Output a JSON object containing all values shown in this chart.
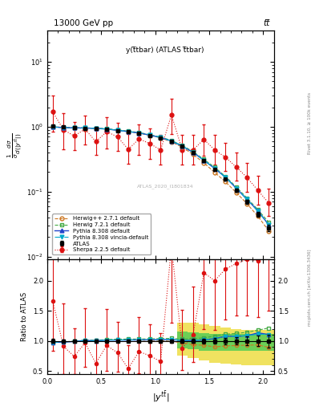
{
  "title_top": "13000 GeV pp",
  "title_right": "tt̅",
  "plot_title": "y(t̅tbar) (ATLAS t̅tbar)",
  "ylabel_main": "1/σ dσ/d(|y^{ttbar}|)",
  "ylabel_ratio": "Ratio to ATLAS",
  "right_label_main": "Rivet 3.1.10, ≥ 100k events",
  "right_label_ratio": "mcplots.cern.ch [arXiv:1306.3436]",
  "watermark": "ATLAS_2020_I1801834",
  "x_centers": [
    0.05,
    0.15,
    0.25,
    0.35,
    0.45,
    0.55,
    0.65,
    0.75,
    0.85,
    0.95,
    1.05,
    1.15,
    1.25,
    1.35,
    1.45,
    1.55,
    1.65,
    1.75,
    1.85,
    1.95,
    2.05
  ],
  "atlas_y": [
    1.02,
    0.99,
    0.97,
    0.95,
    0.94,
    0.91,
    0.87,
    0.83,
    0.79,
    0.73,
    0.67,
    0.59,
    0.5,
    0.4,
    0.3,
    0.22,
    0.155,
    0.105,
    0.07,
    0.045,
    0.028
  ],
  "atlas_yerr": [
    0.03,
    0.025,
    0.022,
    0.022,
    0.02,
    0.02,
    0.018,
    0.018,
    0.018,
    0.018,
    0.018,
    0.016,
    0.015,
    0.014,
    0.012,
    0.01,
    0.008,
    0.006,
    0.005,
    0.004,
    0.003
  ],
  "herwig271_y": [
    1.005,
    0.975,
    0.96,
    0.955,
    0.945,
    0.925,
    0.885,
    0.845,
    0.8,
    0.735,
    0.675,
    0.585,
    0.485,
    0.375,
    0.278,
    0.198,
    0.142,
    0.097,
    0.065,
    0.042,
    0.025
  ],
  "herwig721_y": [
    0.99,
    0.975,
    0.965,
    0.96,
    0.95,
    0.93,
    0.895,
    0.855,
    0.815,
    0.755,
    0.695,
    0.615,
    0.515,
    0.415,
    0.315,
    0.238,
    0.172,
    0.118,
    0.08,
    0.053,
    0.034
  ],
  "pythia8308_y": [
    0.995,
    0.97,
    0.96,
    0.957,
    0.942,
    0.922,
    0.882,
    0.842,
    0.803,
    0.743,
    0.683,
    0.603,
    0.503,
    0.403,
    0.305,
    0.228,
    0.167,
    0.113,
    0.076,
    0.051,
    0.031
  ],
  "pythia8308v_y": [
    0.993,
    0.972,
    0.962,
    0.96,
    0.944,
    0.924,
    0.884,
    0.844,
    0.804,
    0.744,
    0.684,
    0.604,
    0.504,
    0.404,
    0.305,
    0.228,
    0.167,
    0.113,
    0.076,
    0.05,
    0.031
  ],
  "sherpa225_y": [
    1.7,
    0.9,
    0.72,
    0.92,
    0.59,
    0.84,
    0.7,
    0.45,
    0.65,
    0.55,
    0.44,
    1.52,
    0.44,
    0.44,
    0.64,
    0.44,
    0.34,
    0.24,
    0.165,
    0.105,
    0.067
  ],
  "sherpa225_yerr_lo": [
    0.85,
    0.45,
    0.28,
    0.38,
    0.22,
    0.38,
    0.28,
    0.18,
    0.28,
    0.23,
    0.18,
    0.75,
    0.18,
    0.18,
    0.28,
    0.18,
    0.13,
    0.09,
    0.065,
    0.042,
    0.025
  ],
  "sherpa225_yerr_hi": [
    1.3,
    0.7,
    0.45,
    0.55,
    0.38,
    0.55,
    0.45,
    0.32,
    0.45,
    0.38,
    0.32,
    1.15,
    0.32,
    0.32,
    0.45,
    0.32,
    0.23,
    0.16,
    0.11,
    0.072,
    0.045
  ],
  "atlas_color": "#000000",
  "herwig271_color": "#cc7722",
  "herwig721_color": "#44aa44",
  "pythia8308_color": "#2244cc",
  "pythia8308v_color": "#00aacc",
  "sherpa225_color": "#dd1111",
  "band_yellow": "#eedd44",
  "band_green": "#55cc55",
  "band_x_starts": [
    1.25,
    1.35,
    1.45,
    1.55,
    1.65,
    1.75,
    1.85,
    1.95,
    2.05
  ],
  "band_yellow_lo": [
    0.75,
    0.72,
    0.68,
    0.64,
    0.62,
    0.61,
    0.6,
    0.6,
    0.6
  ],
  "band_yellow_hi": [
    1.3,
    1.3,
    1.28,
    1.25,
    1.22,
    1.2,
    1.18,
    1.18,
    1.18
  ],
  "band_green_lo": [
    0.88,
    0.86,
    0.84,
    0.83,
    0.83,
    0.83,
    0.83,
    0.83,
    0.83
  ],
  "band_green_hi": [
    1.15,
    1.14,
    1.13,
    1.12,
    1.12,
    1.12,
    1.12,
    1.12,
    1.12
  ],
  "xlim": [
    0.0,
    2.1
  ],
  "ylim_main": [
    0.009,
    30
  ],
  "ylim_ratio": [
    0.45,
    2.35
  ],
  "ratio_yticks": [
    0.5,
    1.0,
    1.5,
    2.0
  ]
}
